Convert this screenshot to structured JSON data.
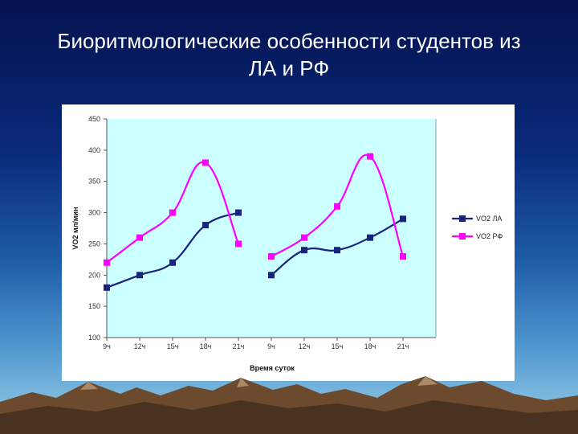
{
  "slide": {
    "title_line1": "Биоритмологические особенности студентов из",
    "title_line2": "ЛА и РФ"
  },
  "chart_data": {
    "type": "line",
    "ylabel": "VO2 мл/мин",
    "xlabel": "Время суток",
    "ylim": [
      100,
      450
    ],
    "yticks": [
      100,
      150,
      200,
      250,
      300,
      350,
      400,
      450
    ],
    "grid": false,
    "legend_position": "right",
    "plot_background": "#ccffff",
    "categories": [
      "9ч",
      "12ч",
      "15ч",
      "18ч",
      "21ч",
      "9ч",
      "12ч",
      "15ч",
      "18ч",
      "21ч"
    ],
    "series": [
      {
        "name": "VO2 ЛА",
        "color": "#1a237e",
        "marker": "square",
        "smooth": true,
        "segments": [
          [
            180,
            200,
            220,
            280,
            300
          ],
          [
            200,
            240,
            240,
            260,
            290
          ]
        ]
      },
      {
        "name": "VO2 РФ",
        "color": "#ff00ff",
        "marker": "square",
        "smooth": true,
        "segments": [
          [
            220,
            260,
            300,
            380,
            250
          ],
          [
            230,
            260,
            310,
            390,
            230
          ]
        ]
      }
    ]
  }
}
